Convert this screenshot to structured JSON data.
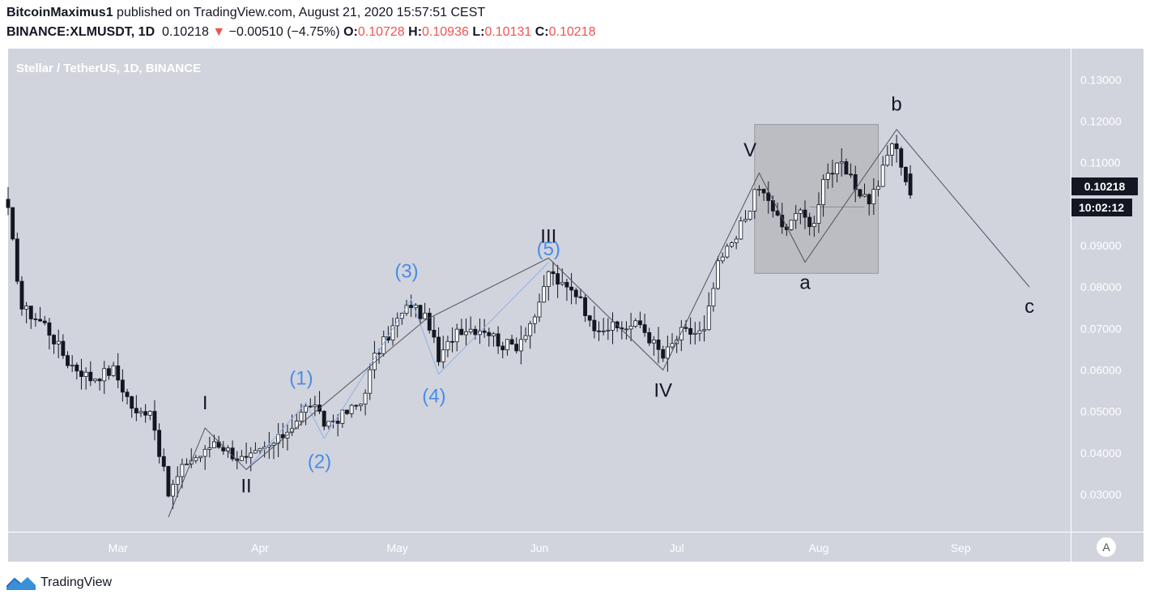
{
  "header": {
    "author": "BitcoinMaximus1",
    "published_text": "published on TradingView.com, August 21, 2020 15:57:51 CEST",
    "symbol": "BINANCE:XLMUSDT, 1D",
    "last": "0.10218",
    "change_arrow": "▼",
    "change": "−0.00510 (−4.75%)",
    "o_label": "O:",
    "o_value": "0.10728",
    "h_label": "H:",
    "h_value": "0.10936",
    "l_label": "L:",
    "l_value": "0.10131",
    "c_label": "C:",
    "c_value": "0.10218"
  },
  "footer": {
    "brand": "TradingView"
  },
  "colors": {
    "plot_bg": "#d1d4dc",
    "box_fill": "#b4b6bb",
    "candle_up": "#ffffff",
    "candle_down": "#131722",
    "wave_blue": "#4a8ce8",
    "tag_bg": "#131722",
    "negative": "#ef5350"
  },
  "chart_data": {
    "type": "candlestick",
    "title": "Stellar / TetherUS, 1D, BINANCE",
    "ylim": [
      0.021,
      0.1375
    ],
    "y_ticks": [
      "0.13000",
      "0.12000",
      "0.11000",
      "0.10000",
      "0.09000",
      "0.08000",
      "0.07000",
      "0.06000",
      "0.05000",
      "0.04000",
      "0.03000"
    ],
    "y_tick_values": [
      0.13,
      0.12,
      0.11,
      0.1,
      0.09,
      0.08,
      0.07,
      0.06,
      0.05,
      0.04,
      0.03
    ],
    "x_ticks": [
      {
        "label": "Mar",
        "date": "2020-03-01"
      },
      {
        "label": "Apr",
        "date": "2020-04-01"
      },
      {
        "label": "May",
        "date": "2020-05-01"
      },
      {
        "label": "Jun",
        "date": "2020-06-01"
      },
      {
        "label": "Jul",
        "date": "2020-07-01"
      },
      {
        "label": "Aug",
        "date": "2020-08-01"
      },
      {
        "label": "Sep",
        "date": "2020-09-01"
      }
    ],
    "x_range": [
      "2020-02-06",
      "2020-09-25"
    ],
    "price_tag": "0.10218",
    "countdown_tag": "10:02:12",
    "anchors": [
      [
        "2020-02-06",
        0.098
      ],
      [
        "2020-02-09",
        0.075
      ],
      [
        "2020-02-14",
        0.071
      ],
      [
        "2020-02-19",
        0.062
      ],
      [
        "2020-02-24",
        0.058
      ],
      [
        "2020-02-29",
        0.06
      ],
      [
        "2020-03-05",
        0.049
      ],
      [
        "2020-03-08",
        0.051
      ],
      [
        "2020-03-12",
        0.03
      ],
      [
        "2020-03-16",
        0.038
      ],
      [
        "2020-03-20",
        0.04
      ],
      [
        "2020-03-22",
        0.043
      ],
      [
        "2020-03-27",
        0.039
      ],
      [
        "2020-03-29",
        0.038
      ],
      [
        "2020-04-05",
        0.043
      ],
      [
        "2020-04-12",
        0.052
      ],
      [
        "2020-04-15",
        0.047
      ],
      [
        "2020-04-19",
        0.049
      ],
      [
        "2020-04-23",
        0.052
      ],
      [
        "2020-04-26",
        0.063
      ],
      [
        "2020-05-01",
        0.072
      ],
      [
        "2020-05-04",
        0.076
      ],
      [
        "2020-05-08",
        0.071
      ],
      [
        "2020-05-10",
        0.062
      ],
      [
        "2020-05-14",
        0.07
      ],
      [
        "2020-05-20",
        0.07
      ],
      [
        "2020-05-24",
        0.066
      ],
      [
        "2020-05-27",
        0.066
      ],
      [
        "2020-06-01",
        0.075
      ],
      [
        "2020-06-03",
        0.084
      ],
      [
        "2020-06-06",
        0.08
      ],
      [
        "2020-06-10",
        0.078
      ],
      [
        "2020-06-12",
        0.071
      ],
      [
        "2020-06-18",
        0.07
      ],
      [
        "2020-06-23",
        0.071
      ],
      [
        "2020-06-28",
        0.063
      ],
      [
        "2020-07-02",
        0.069
      ],
      [
        "2020-07-07",
        0.069
      ],
      [
        "2020-07-10",
        0.085
      ],
      [
        "2020-07-14",
        0.093
      ],
      [
        "2020-07-17",
        0.098
      ],
      [
        "2020-07-18",
        0.104
      ],
      [
        "2020-07-21",
        0.101
      ],
      [
        "2020-07-24",
        0.094
      ],
      [
        "2020-07-27",
        0.098
      ],
      [
        "2020-07-31",
        0.095
      ],
      [
        "2020-08-02",
        0.107
      ],
      [
        "2020-08-06",
        0.109
      ],
      [
        "2020-08-09",
        0.104
      ],
      [
        "2020-08-12",
        0.101
      ],
      [
        "2020-08-14",
        0.105
      ],
      [
        "2020-08-17",
        0.115
      ],
      [
        "2020-08-19",
        0.11
      ],
      [
        "2020-08-20",
        0.106
      ],
      [
        "2020-08-21",
        0.102
      ]
    ],
    "last_candle": {
      "date": "2020-08-21",
      "open": 0.10728,
      "high": 0.10936,
      "low": 0.10131,
      "close": 0.10218
    },
    "wave_path_black": [
      [
        "2020-03-12",
        0.0245
      ],
      [
        "2020-03-20",
        0.046
      ],
      [
        "2020-03-29",
        0.036
      ],
      [
        "2020-05-07",
        0.072
      ],
      [
        "2020-06-03",
        0.087
      ],
      [
        "2020-06-28",
        0.06
      ],
      [
        "2020-07-19",
        0.1075
      ],
      [
        "2020-07-29",
        0.086
      ],
      [
        "2020-08-18",
        0.118
      ],
      [
        "2020-09-16",
        0.08
      ]
    ],
    "wave_path_blue": [
      [
        "2020-03-29",
        0.036
      ],
      [
        "2020-04-11",
        0.052
      ],
      [
        "2020-04-15",
        0.0435
      ],
      [
        "2020-05-04",
        0.077
      ],
      [
        "2020-05-10",
        0.059
      ],
      [
        "2020-06-03",
        0.086
      ]
    ],
    "annotations": [
      {
        "text": "I",
        "date": "2020-03-20",
        "price": 0.0505,
        "color": "black"
      },
      {
        "text": "II",
        "date": "2020-03-29",
        "price": 0.0305,
        "color": "black"
      },
      {
        "text": "III",
        "date": "2020-06-03",
        "price": 0.0907,
        "color": "black"
      },
      {
        "text": "IV",
        "date": "2020-06-28",
        "price": 0.0535,
        "color": "black"
      },
      {
        "text": "V",
        "date": "2020-07-17",
        "price": 0.1115,
        "color": "black"
      },
      {
        "text": "a",
        "date": "2020-07-29",
        "price": 0.0795,
        "color": "black"
      },
      {
        "text": "b",
        "date": "2020-08-18",
        "price": 0.1225,
        "color": "black"
      },
      {
        "text": "c",
        "date": "2020-09-16",
        "price": 0.0738,
        "color": "black"
      },
      {
        "text": "(1)",
        "date": "2020-04-10",
        "price": 0.0565,
        "color": "blue"
      },
      {
        "text": "(2)",
        "date": "2020-04-14",
        "price": 0.0363,
        "color": "blue"
      },
      {
        "text": "(3)",
        "date": "2020-05-03",
        "price": 0.0823,
        "color": "blue"
      },
      {
        "text": "(4)",
        "date": "2020-05-09",
        "price": 0.0522,
        "color": "blue"
      },
      {
        "text": "(5)",
        "date": "2020-06-03",
        "price": 0.0877,
        "color": "blue"
      }
    ],
    "range_box": {
      "from": "2020-07-18",
      "to": "2020-08-14",
      "top": 0.1192,
      "bottom": 0.0833,
      "midline_from": "2020-07-30",
      "midline_to": "2020-08-11",
      "midline_price": 0.0993
    }
  }
}
